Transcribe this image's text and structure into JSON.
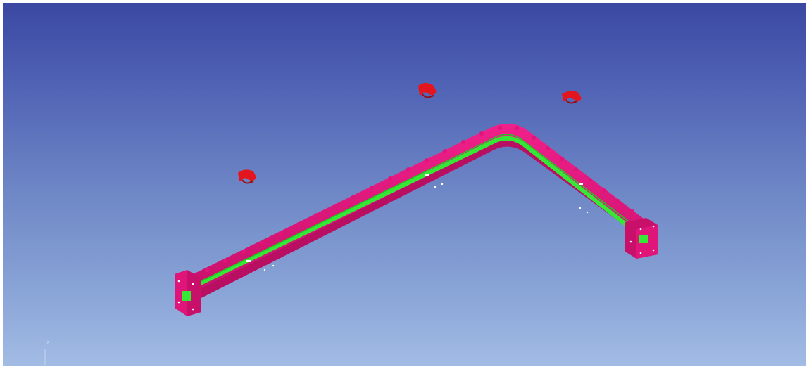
{
  "viewport": {
    "background_top": "#3b48a2",
    "background_bottom": "#a2bce5"
  },
  "model": {
    "body_color": "#e0157a",
    "body_shade_color": "#b80f63",
    "channel_color": "#35e835",
    "marker_color": "#e3161f",
    "marker_count": 3
  },
  "axis": {
    "z_label": "z"
  }
}
